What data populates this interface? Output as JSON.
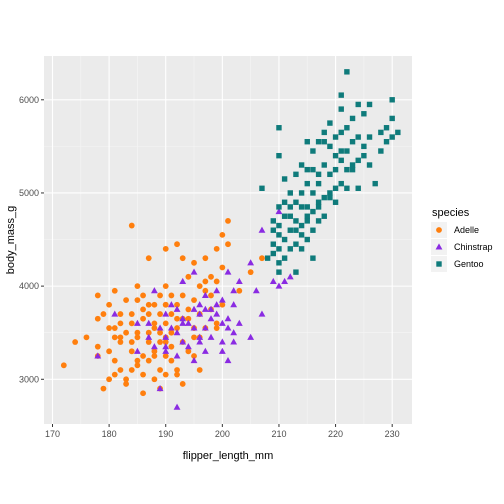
{
  "chart_data": {
    "type": "scatter",
    "xlabel": "flipper_length_mm",
    "ylabel": "body_mass_g",
    "xlim": [
      168.5,
      233.5
    ],
    "ylim": [
      2520,
      6470
    ],
    "x_ticks": [
      170,
      180,
      190,
      200,
      210,
      220,
      230
    ],
    "y_ticks": [
      3000,
      4000,
      5000,
      6000
    ],
    "x_tick_labels": [
      "170",
      "180",
      "190",
      "200",
      "210",
      "220",
      "230"
    ],
    "y_tick_labels": [
      "3000",
      "4000",
      "5000",
      "6000"
    ],
    "grid": true,
    "panel_background": "#ebebeb",
    "grid_major_color": "#ffffff",
    "legend": {
      "title": "species",
      "position": "right"
    },
    "series": [
      {
        "name": "Adelle",
        "color": "#ff7f0e",
        "shape": "circle",
        "points": [
          [
            172,
            3150
          ],
          [
            174,
            3400
          ],
          [
            176,
            3450
          ],
          [
            178,
            3350
          ],
          [
            178,
            3900
          ],
          [
            179,
            2900
          ],
          [
            179,
            3700
          ],
          [
            180,
            3000
          ],
          [
            180,
            3800
          ],
          [
            180,
            3300
          ],
          [
            181,
            3550
          ],
          [
            181,
            3450
          ],
          [
            181,
            3200
          ],
          [
            182,
            3600
          ],
          [
            182,
            3100
          ],
          [
            182,
            3400
          ],
          [
            183,
            3850
          ],
          [
            183,
            3500
          ],
          [
            183,
            3000
          ],
          [
            184,
            3700
          ],
          [
            184,
            3300
          ],
          [
            184,
            4650
          ],
          [
            184,
            3600
          ],
          [
            185,
            3200
          ],
          [
            185,
            4000
          ],
          [
            185,
            3500
          ],
          [
            185,
            3450
          ],
          [
            186,
            3900
          ],
          [
            186,
            3250
          ],
          [
            186,
            3650
          ],
          [
            186,
            3050
          ],
          [
            187,
            3500
          ],
          [
            187,
            3200
          ],
          [
            187,
            4300
          ],
          [
            187,
            3700
          ],
          [
            187,
            3400
          ],
          [
            188,
            3800
          ],
          [
            188,
            3300
          ],
          [
            188,
            3600
          ],
          [
            188,
            3000
          ],
          [
            189,
            3500
          ],
          [
            189,
            3900
          ],
          [
            189,
            3100
          ],
          [
            189,
            3400
          ],
          [
            190,
            3800
          ],
          [
            190,
            3450
          ],
          [
            190,
            3050
          ],
          [
            190,
            4000
          ],
          [
            190,
            3250
          ],
          [
            190,
            3600
          ],
          [
            191,
            3700
          ],
          [
            191,
            3200
          ],
          [
            191,
            3900
          ],
          [
            191,
            3500
          ],
          [
            192,
            3550
          ],
          [
            192,
            3100
          ],
          [
            192,
            4450
          ],
          [
            192,
            3800
          ],
          [
            193,
            3400
          ],
          [
            193,
            3650
          ],
          [
            193,
            3900
          ],
          [
            193,
            2950
          ],
          [
            194,
            3750
          ],
          [
            194,
            3300
          ],
          [
            194,
            4100
          ],
          [
            195,
            3550
          ],
          [
            195,
            3850
          ],
          [
            195,
            3250
          ],
          [
            195,
            4250
          ],
          [
            196,
            3700
          ],
          [
            196,
            4000
          ],
          [
            196,
            3450
          ],
          [
            197,
            3950
          ],
          [
            197,
            3550
          ],
          [
            197,
            4300
          ],
          [
            198,
            3750
          ],
          [
            198,
            4100
          ],
          [
            198,
            3900
          ],
          [
            199,
            4050
          ],
          [
            199,
            3600
          ],
          [
            200,
            4200
          ],
          [
            200,
            3800
          ],
          [
            201,
            4450
          ],
          [
            203,
            3950
          ],
          [
            205,
            4150
          ],
          [
            207,
            4300
          ],
          [
            184,
            3100
          ],
          [
            186,
            2850
          ],
          [
            189,
            2900
          ],
          [
            183,
            2950
          ],
          [
            181,
            3050
          ],
          [
            191,
            3350
          ],
          [
            188,
            3250
          ],
          [
            185,
            3150
          ],
          [
            194,
            3650
          ],
          [
            196,
            3100
          ],
          [
            190,
            4400
          ],
          [
            197,
            4050
          ],
          [
            187,
            3800
          ],
          [
            190,
            3400
          ],
          [
            178,
            3250
          ],
          [
            182,
            3700
          ],
          [
            185,
            3850
          ],
          [
            189,
            3700
          ],
          [
            192,
            3050
          ],
          [
            195,
            3450
          ],
          [
            199,
            4400
          ],
          [
            201,
            4700
          ],
          [
            200,
            4550
          ],
          [
            199,
            3550
          ],
          [
            193,
            4300
          ],
          [
            186,
            3750
          ],
          [
            184,
            3400
          ],
          [
            188,
            3550
          ],
          [
            190,
            3800
          ],
          [
            192,
            3650
          ],
          [
            182,
            3450
          ],
          [
            181,
            3950
          ],
          [
            178,
            3650
          ],
          [
            180,
            3550
          ]
        ]
      },
      {
        "name": "Chinstrap",
        "color": "#8a2be2",
        "shape": "triangle",
        "points": [
          [
            178,
            3250
          ],
          [
            181,
            3700
          ],
          [
            185,
            3300
          ],
          [
            187,
            3450
          ],
          [
            187,
            3600
          ],
          [
            188,
            3350
          ],
          [
            189,
            2900
          ],
          [
            190,
            3700
          ],
          [
            190,
            3450
          ],
          [
            191,
            3550
          ],
          [
            191,
            3800
          ],
          [
            192,
            3500
          ],
          [
            192,
            3250
          ],
          [
            192,
            2700
          ],
          [
            193,
            3400
          ],
          [
            193,
            3650
          ],
          [
            193,
            4050
          ],
          [
            194,
            3350
          ],
          [
            195,
            3750
          ],
          [
            195,
            3550
          ],
          [
            195,
            3200
          ],
          [
            196,
            3700
          ],
          [
            196,
            3400
          ],
          [
            196,
            3800
          ],
          [
            197,
            3550
          ],
          [
            197,
            3900
          ],
          [
            197,
            3300
          ],
          [
            198,
            3650
          ],
          [
            198,
            3450
          ],
          [
            199,
            3950
          ],
          [
            199,
            3800
          ],
          [
            200,
            3600
          ],
          [
            200,
            3400
          ],
          [
            200,
            3850
          ],
          [
            201,
            3550
          ],
          [
            201,
            4150
          ],
          [
            201,
            3200
          ],
          [
            202,
            3800
          ],
          [
            202,
            3950
          ],
          [
            203,
            3600
          ],
          [
            203,
            4050
          ],
          [
            205,
            4250
          ],
          [
            205,
            3450
          ],
          [
            206,
            3950
          ],
          [
            207,
            4600
          ],
          [
            207,
            3700
          ],
          [
            209,
            4050
          ],
          [
            210,
            4000
          ],
          [
            212,
            4100
          ],
          [
            193,
            3600
          ],
          [
            195,
            4150
          ],
          [
            198,
            3750
          ],
          [
            200,
            3300
          ],
          [
            202,
            3400
          ],
          [
            190,
            3350
          ],
          [
            188,
            3950
          ],
          [
            199,
            3700
          ],
          [
            196,
            3450
          ],
          [
            194,
            3600
          ],
          [
            201,
            3650
          ],
          [
            210,
            4800
          ],
          [
            197,
            3750
          ],
          [
            202,
            3500
          ],
          [
            185,
            3600
          ],
          [
            189,
            3550
          ],
          [
            190,
            3300
          ],
          [
            192,
            3750
          ],
          [
            211,
            4050
          ]
        ]
      },
      {
        "name": "Gentoo",
        "color": "#0f7b7b",
        "shape": "square",
        "points": [
          [
            207,
            5050
          ],
          [
            208,
            4300
          ],
          [
            209,
            4450
          ],
          [
            209,
            4600
          ],
          [
            209,
            4700
          ],
          [
            210,
            4150
          ],
          [
            210,
            4400
          ],
          [
            210,
            4550
          ],
          [
            210,
            4650
          ],
          [
            210,
            4850
          ],
          [
            210,
            5400
          ],
          [
            210,
            5700
          ],
          [
            211,
            4300
          ],
          [
            211,
            4500
          ],
          [
            211,
            4900
          ],
          [
            211,
            5150
          ],
          [
            212,
            4400
          ],
          [
            212,
            4600
          ],
          [
            212,
            4750
          ],
          [
            212,
            4850
          ],
          [
            213,
            4150
          ],
          [
            213,
            4450
          ],
          [
            213,
            4700
          ],
          [
            213,
            4900
          ],
          [
            213,
            5200
          ],
          [
            214,
            4550
          ],
          [
            214,
            4650
          ],
          [
            214,
            4850
          ],
          [
            214,
            5000
          ],
          [
            214,
            5300
          ],
          [
            215,
            4500
          ],
          [
            215,
            4700
          ],
          [
            215,
            4850
          ],
          [
            215,
            5100
          ],
          [
            215,
            5550
          ],
          [
            216,
            4600
          ],
          [
            216,
            4800
          ],
          [
            216,
            5000
          ],
          [
            216,
            5250
          ],
          [
            216,
            5450
          ],
          [
            217,
            4700
          ],
          [
            217,
            4900
          ],
          [
            217,
            5100
          ],
          [
            217,
            5550
          ],
          [
            218,
            4750
          ],
          [
            218,
            4950
          ],
          [
            218,
            5300
          ],
          [
            218,
            5550
          ],
          [
            219,
            5000
          ],
          [
            219,
            5200
          ],
          [
            219,
            5500
          ],
          [
            220,
            5050
          ],
          [
            220,
            5250
          ],
          [
            220,
            5600
          ],
          [
            220,
            5400
          ],
          [
            221,
            5100
          ],
          [
            221,
            5350
          ],
          [
            221,
            5650
          ],
          [
            221,
            5900
          ],
          [
            221,
            6050
          ],
          [
            222,
            5250
          ],
          [
            222,
            5450
          ],
          [
            222,
            5700
          ],
          [
            222,
            6300
          ],
          [
            223,
            5300
          ],
          [
            223,
            5550
          ],
          [
            223,
            5800
          ],
          [
            224,
            5350
          ],
          [
            224,
            5600
          ],
          [
            224,
            5950
          ],
          [
            225,
            5400
          ],
          [
            225,
            5500
          ],
          [
            225,
            5850
          ],
          [
            226,
            5300
          ],
          [
            226,
            5600
          ],
          [
            227,
            5100
          ],
          [
            228,
            5450
          ],
          [
            229,
            5700
          ],
          [
            229,
            5550
          ],
          [
            230,
            5600
          ],
          [
            230,
            5800
          ],
          [
            230,
            6000
          ],
          [
            231,
            5650
          ],
          [
            222,
            5050
          ],
          [
            219,
            4950
          ],
          [
            217,
            5200
          ],
          [
            215,
            4750
          ],
          [
            213,
            4600
          ],
          [
            216,
            4300
          ],
          [
            214,
            4400
          ],
          [
            220,
            4900
          ],
          [
            212,
            5000
          ],
          [
            218,
            5650
          ],
          [
            224,
            5050
          ],
          [
            221,
            5450
          ],
          [
            219,
            5750
          ],
          [
            223,
            5250
          ],
          [
            226,
            5950
          ],
          [
            228,
            5650
          ],
          [
            215,
            5250
          ],
          [
            217,
            4850
          ],
          [
            211,
            4750
          ],
          [
            210,
            4250
          ],
          [
            209,
            4350
          ]
        ]
      }
    ]
  }
}
